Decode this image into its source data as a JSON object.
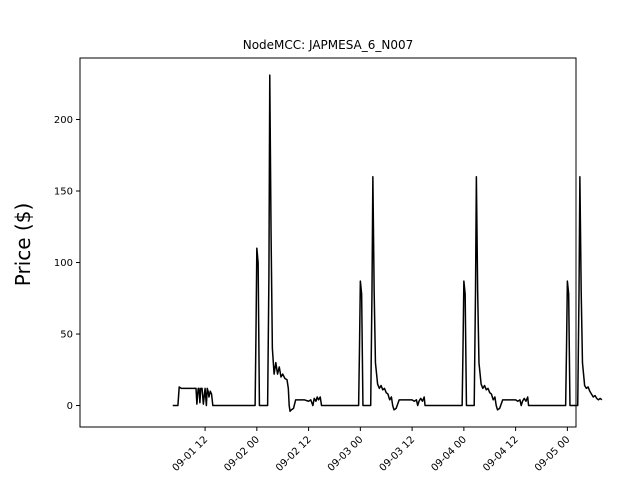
{
  "chart_data": {
    "type": "line",
    "title": "NodeMCC: JAPMESA_6_N007",
    "xlabel": "",
    "ylabel": "Price ($)",
    "x_axis": "datetime",
    "xlim_hours": [
      -17,
      98
    ],
    "ylim": [
      -15,
      243
    ],
    "y_ticks": [
      0,
      50,
      100,
      150,
      200
    ],
    "x_ticks": [
      {
        "hour": 12,
        "label": "09-01 12"
      },
      {
        "hour": 24,
        "label": "09-02 00"
      },
      {
        "hour": 36,
        "label": "09-02 12"
      },
      {
        "hour": 48,
        "label": "09-03 00"
      },
      {
        "hour": 60,
        "label": "09-03 12"
      },
      {
        "hour": 72,
        "label": "09-04 00"
      },
      {
        "hour": 84,
        "label": "09-04 12"
      },
      {
        "hour": 96,
        "label": "09-05 00"
      }
    ],
    "grid": false,
    "legend": "none",
    "series": [
      {
        "color": "#000000",
        "points": [
          [
            4.5,
            0
          ],
          [
            5.7,
            0
          ],
          [
            6.0,
            13
          ],
          [
            6.5,
            12
          ],
          [
            7.5,
            12
          ],
          [
            8.5,
            12
          ],
          [
            9.5,
            12
          ],
          [
            9.9,
            12
          ],
          [
            10.1,
            1
          ],
          [
            10.4,
            12
          ],
          [
            10.6,
            12
          ],
          [
            10.8,
            2
          ],
          [
            11.0,
            12
          ],
          [
            11.3,
            12
          ],
          [
            11.6,
            1
          ],
          [
            12.0,
            12
          ],
          [
            12.3,
            0
          ],
          [
            12.5,
            12
          ],
          [
            12.7,
            10
          ],
          [
            12.9,
            6
          ],
          [
            13.2,
            10
          ],
          [
            13.5,
            8
          ],
          [
            13.8,
            0
          ],
          [
            16.0,
            0
          ],
          [
            20.0,
            0
          ],
          [
            23.6,
            0
          ],
          [
            23.8,
            50
          ],
          [
            24.0,
            110
          ],
          [
            24.3,
            100
          ],
          [
            24.6,
            0
          ],
          [
            26.5,
            0
          ],
          [
            26.8,
            90
          ],
          [
            27.0,
            231
          ],
          [
            27.3,
            120
          ],
          [
            27.6,
            40
          ],
          [
            28.0,
            22
          ],
          [
            28.4,
            30
          ],
          [
            28.8,
            22
          ],
          [
            29.2,
            27
          ],
          [
            29.6,
            20
          ],
          [
            30.0,
            22
          ],
          [
            30.5,
            19
          ],
          [
            31.0,
            18
          ],
          [
            31.3,
            12
          ],
          [
            31.5,
            0
          ],
          [
            31.7,
            -4
          ],
          [
            32.0,
            -3
          ],
          [
            32.5,
            -2
          ],
          [
            33.0,
            4
          ],
          [
            34.0,
            4
          ],
          [
            35.0,
            4
          ],
          [
            36.0,
            3
          ],
          [
            36.5,
            4
          ],
          [
            37.0,
            0
          ],
          [
            37.3,
            5
          ],
          [
            37.7,
            3
          ],
          [
            38.0,
            6
          ],
          [
            38.3,
            4
          ],
          [
            38.7,
            6
          ],
          [
            39.0,
            0
          ],
          [
            44.0,
            0
          ],
          [
            47.6,
            0
          ],
          [
            47.8,
            40
          ],
          [
            48.0,
            87
          ],
          [
            48.3,
            78
          ],
          [
            48.6,
            0
          ],
          [
            50.4,
            0
          ],
          [
            50.7,
            80
          ],
          [
            50.9,
            160
          ],
          [
            51.2,
            80
          ],
          [
            51.5,
            30
          ],
          [
            52.0,
            15
          ],
          [
            52.4,
            12
          ],
          [
            52.8,
            14
          ],
          [
            53.2,
            11
          ],
          [
            53.6,
            12
          ],
          [
            54.0,
            9
          ],
          [
            54.4,
            8
          ],
          [
            54.8,
            4
          ],
          [
            55.2,
            6
          ],
          [
            55.5,
            0
          ],
          [
            55.8,
            -3
          ],
          [
            56.3,
            -2
          ],
          [
            57.0,
            4
          ],
          [
            58.0,
            4
          ],
          [
            59.0,
            4
          ],
          [
            60.0,
            4
          ],
          [
            60.5,
            3
          ],
          [
            61.0,
            4
          ],
          [
            61.3,
            0
          ],
          [
            61.6,
            3
          ],
          [
            62.0,
            5
          ],
          [
            62.4,
            3
          ],
          [
            62.8,
            6
          ],
          [
            63.0,
            0
          ],
          [
            68.0,
            0
          ],
          [
            71.6,
            0
          ],
          [
            71.8,
            40
          ],
          [
            72.0,
            87
          ],
          [
            72.3,
            78
          ],
          [
            72.6,
            0
          ],
          [
            74.4,
            0
          ],
          [
            74.7,
            80
          ],
          [
            74.9,
            160
          ],
          [
            75.2,
            80
          ],
          [
            75.5,
            30
          ],
          [
            76.0,
            15
          ],
          [
            76.4,
            12
          ],
          [
            76.8,
            14
          ],
          [
            77.2,
            11
          ],
          [
            77.6,
            12
          ],
          [
            78.0,
            9
          ],
          [
            78.4,
            8
          ],
          [
            78.8,
            4
          ],
          [
            79.2,
            6
          ],
          [
            79.5,
            0
          ],
          [
            79.8,
            -3
          ],
          [
            80.3,
            -2
          ],
          [
            81.0,
            4
          ],
          [
            82.0,
            4
          ],
          [
            83.0,
            4
          ],
          [
            84.0,
            4
          ],
          [
            84.5,
            3
          ],
          [
            85.0,
            4
          ],
          [
            85.3,
            0
          ],
          [
            85.6,
            3
          ],
          [
            86.0,
            5
          ],
          [
            86.4,
            3
          ],
          [
            86.8,
            6
          ],
          [
            87.0,
            0
          ],
          [
            92.0,
            0
          ],
          [
            95.6,
            0
          ],
          [
            95.8,
            40
          ],
          [
            96.0,
            87
          ],
          [
            96.3,
            78
          ],
          [
            96.6,
            0
          ],
          [
            98.4,
            0
          ],
          [
            98.7,
            80
          ],
          [
            98.9,
            160
          ],
          [
            99.2,
            80
          ],
          [
            99.5,
            30
          ],
          [
            100.0,
            14
          ],
          [
            100.4,
            12
          ],
          [
            100.8,
            13
          ],
          [
            101.2,
            10
          ],
          [
            101.6,
            8
          ],
          [
            102.0,
            6
          ],
          [
            102.4,
            7
          ],
          [
            102.8,
            5
          ],
          [
            103.2,
            4
          ],
          [
            103.6,
            5
          ],
          [
            104.0,
            4
          ]
        ]
      }
    ]
  }
}
